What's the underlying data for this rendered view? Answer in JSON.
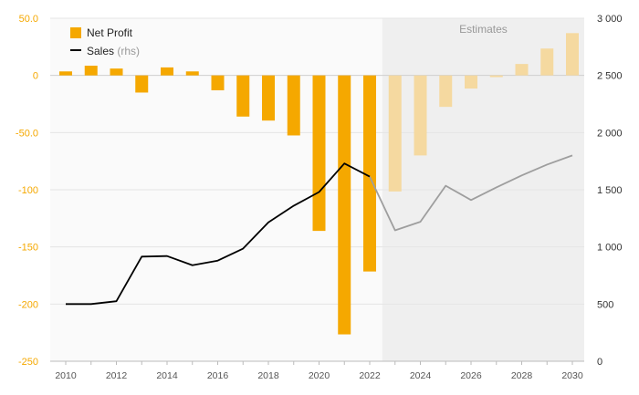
{
  "chart_data": {
    "type": "bar+line",
    "title": "",
    "xlabel": "",
    "ylabel": "",
    "x": [
      2010,
      2011,
      2012,
      2013,
      2014,
      2015,
      2016,
      2017,
      2018,
      2019,
      2020,
      2021,
      2022,
      2023,
      2024,
      2025,
      2026,
      2027,
      2028,
      2029,
      2030
    ],
    "x_tick_labels": [
      "2010",
      "2012",
      "2014",
      "2016",
      "2018",
      "2020",
      "2022",
      "2024",
      "2026",
      "2028",
      "2030"
    ],
    "series": [
      {
        "name": "Net Profit",
        "type": "bar",
        "axis": "left",
        "color": "#f5a800",
        "estimate_color": "#f5d9a0",
        "values": [
          3.5,
          8.5,
          6,
          -15,
          7,
          3.5,
          -13,
          -36,
          -39.5,
          -52.5,
          -136,
          -226.5,
          -171.5,
          -101.5,
          -70,
          -27.5,
          -11.5,
          -1.5,
          10,
          23.5,
          37
        ]
      },
      {
        "name": "Sales",
        "name_suffix": "(rhs)",
        "type": "line",
        "axis": "right",
        "color": "#000000",
        "estimate_color": "#9e9e9e",
        "values": [
          500,
          500,
          525,
          915,
          920,
          840,
          880,
          985,
          1215,
          1360,
          1480,
          1730,
          1615,
          1145,
          1220,
          1535,
          1410,
          1520,
          1625,
          1720,
          1800
        ]
      }
    ],
    "y_left": {
      "range": [
        -250,
        50
      ],
      "ticks": [
        50,
        0,
        -50,
        -100,
        -150,
        -200,
        -250
      ],
      "tick_labels": [
        "50.0",
        "0",
        "-50.0",
        "-100",
        "-150",
        "-200",
        "-250"
      ]
    },
    "y_right": {
      "range": [
        0,
        3000
      ],
      "ticks": [
        3000,
        2500,
        2000,
        1500,
        1000,
        500,
        0
      ],
      "tick_labels": [
        "3 000",
        "2 500",
        "2 000",
        "1 500",
        "1 000",
        "500",
        "0"
      ]
    },
    "estimates": {
      "label": "Estimates",
      "from_year": 2023,
      "background": "#efefef"
    },
    "grid": true,
    "legend": "top-left"
  }
}
